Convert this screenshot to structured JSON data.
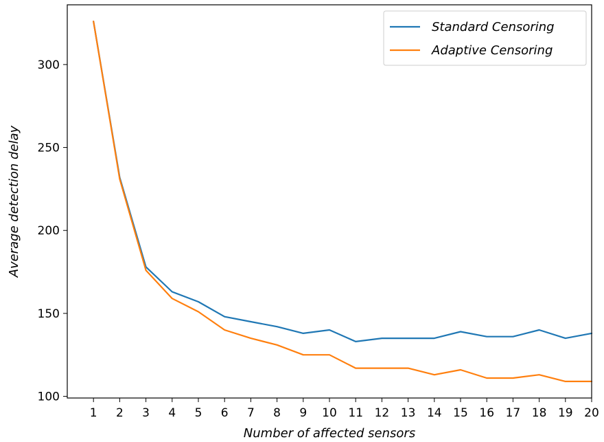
{
  "chart_data": {
    "type": "line",
    "title": "",
    "xlabel": "Number of affected sensors",
    "ylabel": "Average detection delay",
    "x": [
      1,
      2,
      3,
      4,
      5,
      6,
      7,
      8,
      9,
      10,
      11,
      12,
      13,
      14,
      15,
      16,
      17,
      18,
      19,
      20
    ],
    "xticks": [
      "1",
      "2",
      "3",
      "4",
      "5",
      "6",
      "7",
      "8",
      "9",
      "10",
      "11",
      "12",
      "13",
      "14",
      "15",
      "16",
      "17",
      "18",
      "19",
      "20"
    ],
    "yticks": [
      "100",
      "150",
      "200",
      "250",
      "300"
    ],
    "xlim": [
      0.0,
      20.0
    ],
    "ylim": [
      99,
      336
    ],
    "grid": false,
    "legend": "top-right",
    "series": [
      {
        "name": "Standard Censoring",
        "color": "#1f77b4",
        "values": [
          326,
          232,
          178,
          163,
          157,
          148,
          145,
          142,
          138,
          140,
          133,
          135,
          135,
          135,
          139,
          136,
          136,
          140,
          135,
          138
        ]
      },
      {
        "name": "Adaptive Censoring",
        "color": "#ff7f0e",
        "values": [
          326,
          231,
          176,
          159,
          151,
          140,
          135,
          131,
          125,
          125,
          117,
          117,
          117,
          113,
          116,
          111,
          111,
          113,
          109,
          109
        ]
      }
    ]
  }
}
